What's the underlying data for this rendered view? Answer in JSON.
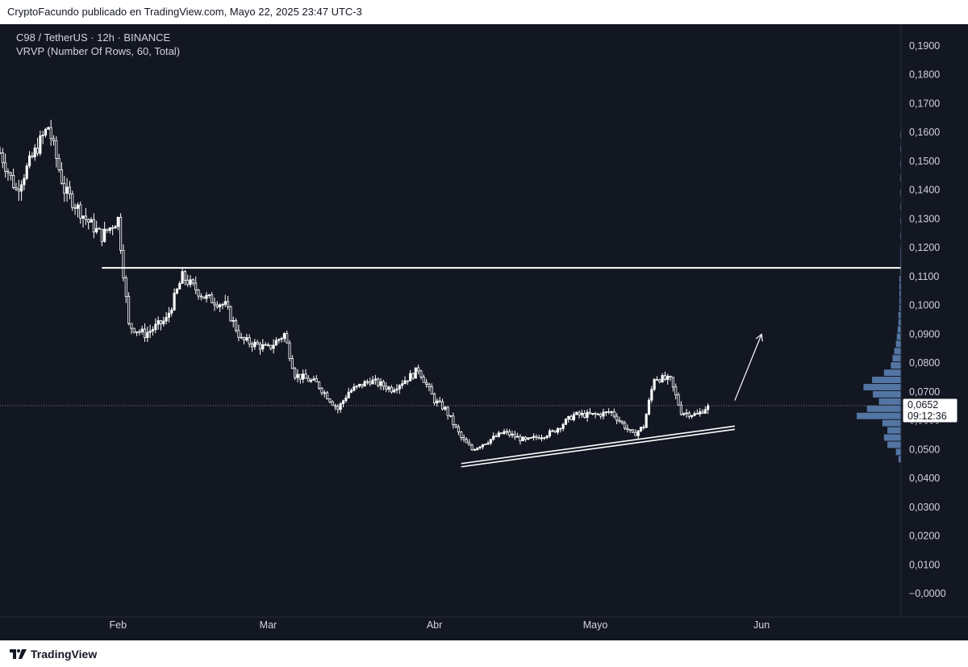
{
  "header": {
    "attribution": "CryptoFacundo publicado en TradingView.com, Mayo 22, 2025 23:47 UTC-3"
  },
  "legend": {
    "symbol_line": "C98 / TetherUS · 12h · BINANCE",
    "indicator_line": "VRVP (Number Of Rows, 60, Total)"
  },
  "footer": {
    "brand": "TradingView",
    "logo_icon": "tradingview-logo-icon"
  },
  "colors": {
    "background": "#131722",
    "candle": "#ffffff",
    "volume_profile": "#5b7fb2",
    "axis_text": "#d1d4dc"
  },
  "chart_data": {
    "type": "candlestick",
    "title": "C98 / TetherUS · 12h · BINANCE",
    "ylim": [
      -0.005,
      0.195
    ],
    "y_ticks": [
      "0,1900",
      "0,1800",
      "0,1700",
      "0,1600",
      "0,1500",
      "0,1400",
      "0,1300",
      "0,1200",
      "0,1100",
      "0,1000",
      "0,0900",
      "0,0800",
      "0,0700",
      "0,0600",
      "0,0500",
      "0,0400",
      "0,0300",
      "0,0200",
      "0,0100",
      "−0,0000"
    ],
    "y_tick_values": [
      0.19,
      0.18,
      0.17,
      0.16,
      0.15,
      0.14,
      0.13,
      0.12,
      0.11,
      0.1,
      0.09,
      0.08,
      0.07,
      0.06,
      0.05,
      0.04,
      0.03,
      0.02,
      0.01,
      0.0
    ],
    "x_ticks": [
      {
        "label": "Feb",
        "date": "2025-02-01"
      },
      {
        "label": "Mar",
        "date": "2025-03-01"
      },
      {
        "label": "Abr",
        "date": "2025-04-01"
      },
      {
        "label": "Mayo",
        "date": "2025-05-01"
      },
      {
        "label": "Jun",
        "date": "2025-06-01"
      }
    ],
    "x_range": [
      "2025-01-10",
      "2025-06-27"
    ],
    "price_path": [
      {
        "date": "2025-01-10",
        "price": 0.153
      },
      {
        "date": "2025-01-13",
        "price": 0.14
      },
      {
        "date": "2025-01-17",
        "price": 0.155
      },
      {
        "date": "2025-01-19",
        "price": 0.162
      },
      {
        "date": "2025-01-22",
        "price": 0.14
      },
      {
        "date": "2025-01-26",
        "price": 0.13
      },
      {
        "date": "2025-01-29",
        "price": 0.124
      },
      {
        "date": "2025-02-01",
        "price": 0.13
      },
      {
        "date": "2025-02-03",
        "price": 0.093
      },
      {
        "date": "2025-02-06",
        "price": 0.09
      },
      {
        "date": "2025-02-10",
        "price": 0.095
      },
      {
        "date": "2025-02-13",
        "price": 0.11
      },
      {
        "date": "2025-02-17",
        "price": 0.103
      },
      {
        "date": "2025-02-21",
        "price": 0.1
      },
      {
        "date": "2025-02-24",
        "price": 0.088
      },
      {
        "date": "2025-03-01",
        "price": 0.085
      },
      {
        "date": "2025-03-04",
        "price": 0.09
      },
      {
        "date": "2025-03-06",
        "price": 0.076
      },
      {
        "date": "2025-03-10",
        "price": 0.073
      },
      {
        "date": "2025-03-14",
        "price": 0.064
      },
      {
        "date": "2025-03-16",
        "price": 0.07
      },
      {
        "date": "2025-03-20",
        "price": 0.074
      },
      {
        "date": "2025-03-24",
        "price": 0.071
      },
      {
        "date": "2025-03-28",
        "price": 0.076
      },
      {
        "date": "2025-03-29",
        "price": 0.078
      },
      {
        "date": "2025-04-01",
        "price": 0.067
      },
      {
        "date": "2025-04-03",
        "price": 0.064
      },
      {
        "date": "2025-04-06",
        "price": 0.054
      },
      {
        "date": "2025-04-08",
        "price": 0.05
      },
      {
        "date": "2025-04-10",
        "price": 0.052
      },
      {
        "date": "2025-04-14",
        "price": 0.056
      },
      {
        "date": "2025-04-18",
        "price": 0.053
      },
      {
        "date": "2025-04-23",
        "price": 0.056
      },
      {
        "date": "2025-04-27",
        "price": 0.062
      },
      {
        "date": "2025-05-01",
        "price": 0.062
      },
      {
        "date": "2025-05-04",
        "price": 0.063
      },
      {
        "date": "2025-05-08",
        "price": 0.055
      },
      {
        "date": "2025-05-10",
        "price": 0.058
      },
      {
        "date": "2025-05-12",
        "price": 0.075
      },
      {
        "date": "2025-05-15",
        "price": 0.074
      },
      {
        "date": "2025-05-17",
        "price": 0.063
      },
      {
        "date": "2025-05-20",
        "price": 0.062
      },
      {
        "date": "2025-05-22",
        "price": 0.0652
      }
    ],
    "last_price": {
      "value": 0.0652,
      "label": "0,0652",
      "countdown": "09:12:36"
    },
    "annotations": [
      {
        "type": "horizontal-line",
        "price": 0.113,
        "from": "2025-01-29",
        "to": "2025-06-27",
        "color": "#ffffff"
      },
      {
        "type": "trendline-double",
        "from": {
          "date": "2025-04-06",
          "price": 0.044
        },
        "to": {
          "date": "2025-05-27",
          "price": 0.057
        },
        "color": "#ffffff"
      },
      {
        "type": "arrow",
        "from": {
          "date": "2025-05-27",
          "price": 0.067
        },
        "to": {
          "date": "2025-06-01",
          "price": 0.09
        },
        "color": "#ffffff"
      }
    ],
    "volume_profile": {
      "row_height": 0.0025,
      "rows": [
        {
          "price": 0.0465,
          "volume": 3
        },
        {
          "price": 0.049,
          "volume": 6
        },
        {
          "price": 0.0515,
          "volume": 16
        },
        {
          "price": 0.054,
          "volume": 20
        },
        {
          "price": 0.0565,
          "volume": 16
        },
        {
          "price": 0.059,
          "volume": 22
        },
        {
          "price": 0.0615,
          "volume": 52
        },
        {
          "price": 0.064,
          "volume": 40
        },
        {
          "price": 0.0665,
          "volume": 26
        },
        {
          "price": 0.069,
          "volume": 33
        },
        {
          "price": 0.0715,
          "volume": 44
        },
        {
          "price": 0.074,
          "volume": 34
        },
        {
          "price": 0.0765,
          "volume": 20
        },
        {
          "price": 0.079,
          "volume": 12
        },
        {
          "price": 0.0815,
          "volume": 10
        },
        {
          "price": 0.084,
          "volume": 8
        },
        {
          "price": 0.0865,
          "volume": 6
        },
        {
          "price": 0.089,
          "volume": 5
        },
        {
          "price": 0.0915,
          "volume": 4
        },
        {
          "price": 0.094,
          "volume": 3
        },
        {
          "price": 0.0965,
          "volume": 3
        },
        {
          "price": 0.099,
          "volume": 2
        },
        {
          "price": 0.1015,
          "volume": 2
        },
        {
          "price": 0.104,
          "volume": 2
        },
        {
          "price": 0.1065,
          "volume": 2
        },
        {
          "price": 0.109,
          "volume": 2
        },
        {
          "price": 0.1115,
          "volume": 1
        },
        {
          "price": 0.114,
          "volume": 1
        },
        {
          "price": 0.1165,
          "volume": 1
        },
        {
          "price": 0.119,
          "volume": 1
        },
        {
          "price": 0.124,
          "volume": 1
        },
        {
          "price": 0.129,
          "volume": 1
        },
        {
          "price": 0.134,
          "volume": 1
        },
        {
          "price": 0.139,
          "volume": 1
        },
        {
          "price": 0.144,
          "volume": 1
        },
        {
          "price": 0.149,
          "volume": 1
        },
        {
          "price": 0.154,
          "volume": 1
        },
        {
          "price": 0.159,
          "volume": 1
        }
      ]
    }
  }
}
